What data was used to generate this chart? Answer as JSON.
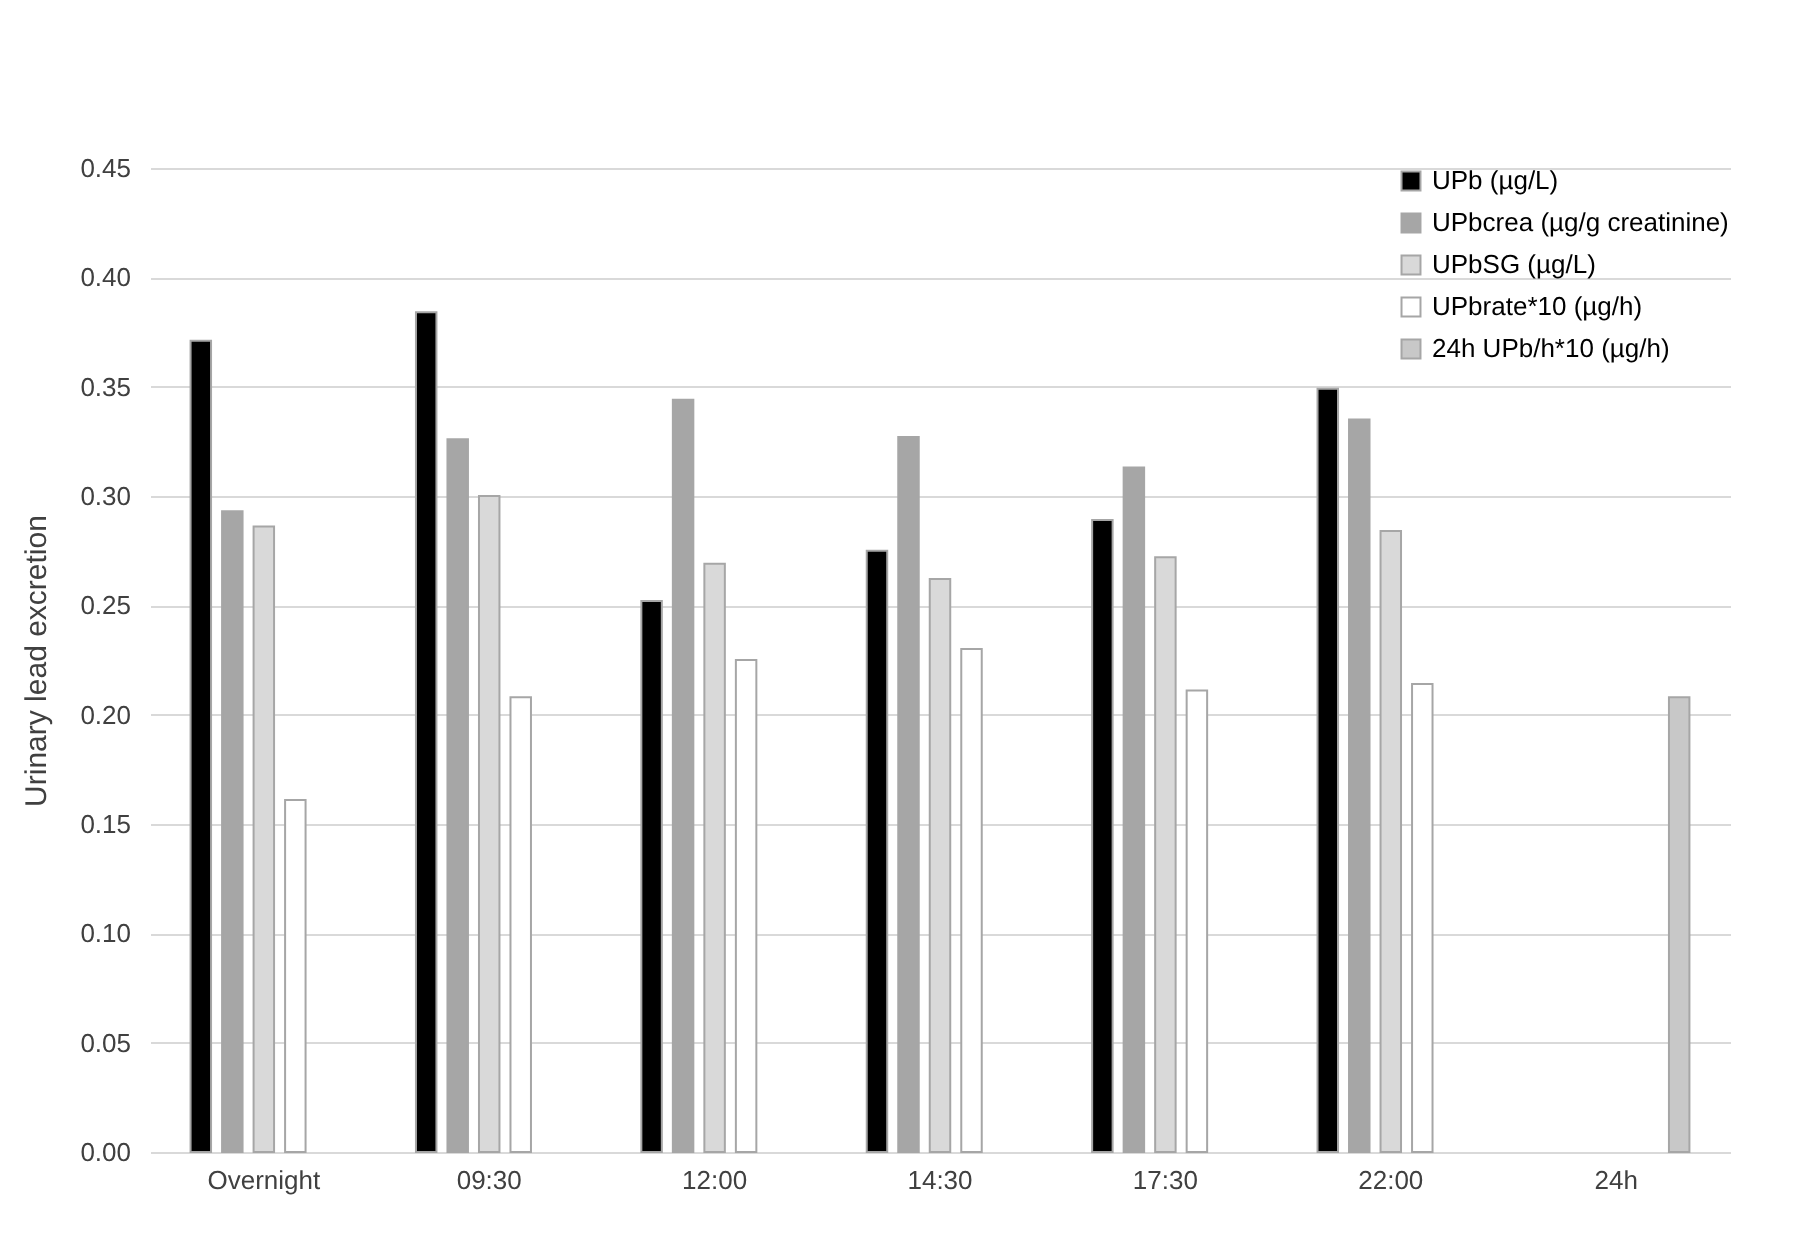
{
  "chart_data": {
    "type": "bar",
    "ylabel": "Urinary lead excretion",
    "categories": [
      "Overnight",
      "09:30",
      "12:00",
      "14:30",
      "17:30",
      "22:00",
      "24h"
    ],
    "series": [
      {
        "name": "UPb (µg/L)",
        "color": "#000000",
        "values": [
          0.371,
          0.384,
          0.252,
          0.275,
          0.289,
          0.349,
          null
        ]
      },
      {
        "name": "UPbcrea (µg/g creatinine)",
        "color": "#a6a6a6",
        "values": [
          0.293,
          0.326,
          0.344,
          0.327,
          0.313,
          0.335,
          null
        ]
      },
      {
        "name": "UPbSG (µg/L)",
        "color": "#d9d9d9",
        "values": [
          0.286,
          0.3,
          0.269,
          0.262,
          0.272,
          0.284,
          null
        ]
      },
      {
        "name": "UPbrate*10 (µg/h)",
        "color": "#ffffff",
        "values": [
          0.161,
          0.208,
          0.225,
          0.23,
          0.211,
          0.214,
          null
        ]
      },
      {
        "name": "24h UPb/h*10 (µg/h)",
        "color": "#c8c8c8",
        "values": [
          null,
          null,
          null,
          null,
          null,
          null,
          0.208
        ]
      }
    ],
    "ylim": [
      0,
      0.45
    ],
    "yticks": [
      {
        "value": 0,
        "label": "0.00"
      },
      {
        "value": 0.05,
        "label": "0.05"
      },
      {
        "value": 0.1,
        "label": "0.10"
      },
      {
        "value": 0.15,
        "label": "0.15"
      },
      {
        "value": 0.2,
        "label": "0.20"
      },
      {
        "value": 0.25,
        "label": "0.25"
      },
      {
        "value": 0.3,
        "label": "0.30"
      },
      {
        "value": 0.35,
        "label": "0.35"
      },
      {
        "value": 0.4,
        "label": "0.40"
      },
      {
        "value": 0.45,
        "label": "0.45"
      }
    ],
    "grid": "y",
    "legend": "top right"
  }
}
